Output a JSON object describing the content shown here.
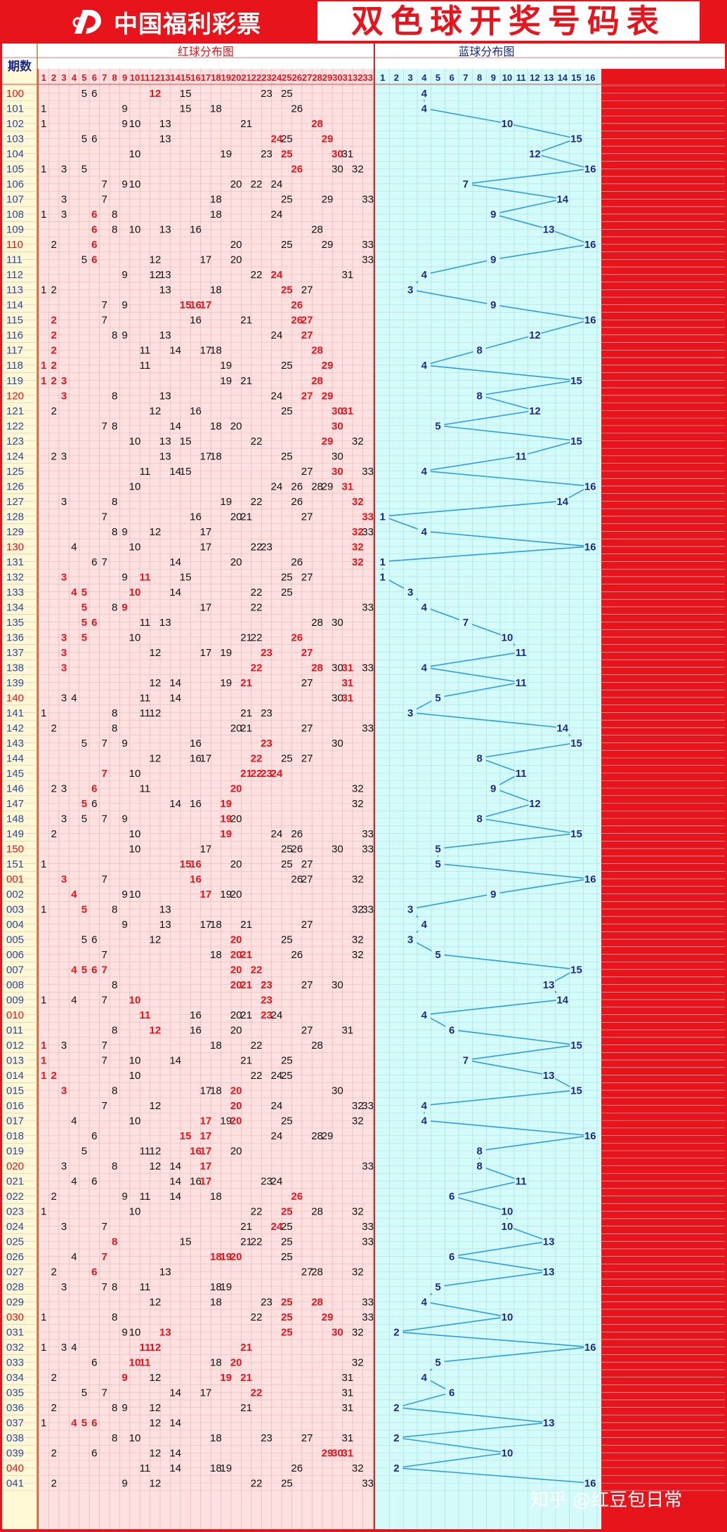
{
  "header": {
    "logo_text": "中国福利彩票",
    "title": "双色球开奖号码表"
  },
  "table": {
    "period_header": "期数",
    "red_header": "红球分布图",
    "blue_header": "蓝球分布图",
    "red_numbers": [
      "1",
      "2",
      "3",
      "4",
      "5",
      "6",
      "7",
      "8",
      "9",
      "10",
      "11",
      "12",
      "13",
      "14",
      "15",
      "16",
      "17",
      "18",
      "19",
      "20",
      "21",
      "22",
      "23",
      "24",
      "25",
      "26",
      "27",
      "28",
      "29",
      "30",
      "31",
      "32",
      "33"
    ],
    "blue_numbers": [
      "1",
      "2",
      "3",
      "4",
      "5",
      "6",
      "7",
      "8",
      "9",
      "10",
      "11",
      "12",
      "13",
      "14",
      "15",
      "16"
    ]
  },
  "colors": {
    "frame": "#e8141b",
    "red_area": "#fde0e0",
    "blue_area": "#d4fafa",
    "grid_red": "#f1b8b8",
    "grid_blue": "#a9e4e4",
    "text_black": "#111111",
    "text_red": "#e8141b",
    "text_navy": "#1a2a8c",
    "blue_line": "#2e9ee0",
    "period_black": "#2a4a9a",
    "period_red": "#e8141b"
  },
  "draws": [
    {
      "p": "100",
      "red": [
        5,
        6,
        12,
        15,
        23,
        25
      ],
      "hot": [
        12
      ],
      "blue": 4,
      "pr": true
    },
    {
      "p": "101",
      "red": [
        1,
        9,
        15,
        18,
        26
      ],
      "hot": [],
      "blue": 4,
      "pr": false
    },
    {
      "p": "102",
      "red": [
        1,
        9,
        10,
        13,
        21,
        28
      ],
      "hot": [
        28
      ],
      "blue": 10,
      "pr": false
    },
    {
      "p": "103",
      "red": [
        5,
        6,
        13,
        24,
        25,
        29
      ],
      "hot": [
        24,
        29
      ],
      "blue": 15,
      "pr": false
    },
    {
      "p": "104",
      "red": [
        10,
        19,
        23,
        25,
        30,
        31
      ],
      "hot": [
        25,
        30
      ],
      "blue": 12,
      "pr": false
    },
    {
      "p": "105",
      "red": [
        1,
        3,
        5,
        26,
        30,
        32
      ],
      "hot": [
        26
      ],
      "blue": 16,
      "pr": false
    },
    {
      "p": "106",
      "red": [
        7,
        9,
        10,
        20,
        22,
        24
      ],
      "hot": [],
      "blue": 7,
      "pr": false
    },
    {
      "p": "107",
      "red": [
        3,
        7,
        18,
        25,
        29,
        33
      ],
      "hot": [],
      "blue": 14,
      "pr": false
    },
    {
      "p": "108",
      "red": [
        1,
        3,
        6,
        8,
        18,
        24
      ],
      "hot": [
        6
      ],
      "blue": 9,
      "pr": false
    },
    {
      "p": "109",
      "red": [
        6,
        8,
        10,
        13,
        16,
        28
      ],
      "hot": [
        6
      ],
      "blue": 13,
      "pr": false
    },
    {
      "p": "110",
      "red": [
        2,
        6,
        20,
        25,
        29,
        33
      ],
      "hot": [
        6
      ],
      "blue": 16,
      "pr": true
    },
    {
      "p": "111",
      "red": [
        5,
        6,
        12,
        17,
        20,
        33
      ],
      "hot": [
        6
      ],
      "blue": 9,
      "pr": false
    },
    {
      "p": "112",
      "red": [
        9,
        12,
        13,
        22,
        24,
        31
      ],
      "hot": [
        24
      ],
      "blue": 4,
      "pr": false
    },
    {
      "p": "113",
      "red": [
        1,
        2,
        13,
        18,
        25,
        27
      ],
      "hot": [
        25
      ],
      "blue": 3,
      "pr": false
    },
    {
      "p": "114",
      "red": [
        7,
        9,
        15,
        16,
        17,
        26
      ],
      "hot": [
        15,
        16,
        17,
        26
      ],
      "blue": 9,
      "pr": false
    },
    {
      "p": "115",
      "red": [
        2,
        7,
        16,
        21,
        26,
        27
      ],
      "hot": [
        2,
        26,
        27
      ],
      "blue": 16,
      "pr": false
    },
    {
      "p": "116",
      "red": [
        2,
        8,
        9,
        13,
        24,
        27
      ],
      "hot": [
        2,
        27
      ],
      "blue": 12,
      "pr": false
    },
    {
      "p": "117",
      "red": [
        2,
        11,
        14,
        17,
        18,
        28
      ],
      "hot": [
        2,
        28
      ],
      "blue": 8,
      "pr": false
    },
    {
      "p": "118",
      "red": [
        1,
        2,
        11,
        19,
        25,
        29
      ],
      "hot": [
        1,
        2,
        29
      ],
      "blue": 4,
      "pr": false
    },
    {
      "p": "119",
      "red": [
        1,
        2,
        3,
        19,
        21,
        28
      ],
      "hot": [
        1,
        2,
        3,
        28
      ],
      "blue": 15,
      "pr": false
    },
    {
      "p": "120",
      "red": [
        3,
        8,
        13,
        24,
        27,
        29
      ],
      "hot": [
        3,
        27,
        29
      ],
      "blue": 8,
      "pr": true
    },
    {
      "p": "121",
      "red": [
        2,
        12,
        16,
        25,
        30,
        31
      ],
      "hot": [
        30,
        31
      ],
      "blue": 12,
      "pr": false
    },
    {
      "p": "122",
      "red": [
        7,
        8,
        14,
        18,
        20,
        30
      ],
      "hot": [
        30
      ],
      "blue": 5,
      "pr": false
    },
    {
      "p": "123",
      "red": [
        10,
        13,
        15,
        22,
        29,
        32
      ],
      "hot": [
        29
      ],
      "blue": 15,
      "pr": false
    },
    {
      "p": "124",
      "red": [
        2,
        3,
        13,
        17,
        18,
        25,
        30
      ],
      "hot": [],
      "blue": 11,
      "pr": false
    },
    {
      "p": "125",
      "red": [
        11,
        14,
        15,
        27,
        30,
        33
      ],
      "hot": [
        30
      ],
      "blue": 4,
      "pr": false
    },
    {
      "p": "126",
      "red": [
        10,
        24,
        26,
        28,
        29,
        31
      ],
      "hot": [
        31
      ],
      "blue": 16,
      "pr": false
    },
    {
      "p": "127",
      "red": [
        3,
        8,
        19,
        22,
        26,
        32
      ],
      "hot": [
        32
      ],
      "blue": 14,
      "pr": false
    },
    {
      "p": "128",
      "red": [
        7,
        16,
        20,
        21,
        27,
        33
      ],
      "hot": [
        33
      ],
      "blue": 1,
      "pr": false
    },
    {
      "p": "129",
      "red": [
        8,
        9,
        12,
        17,
        32,
        33
      ],
      "hot": [
        32
      ],
      "blue": 4,
      "pr": false
    },
    {
      "p": "130",
      "red": [
        4,
        10,
        17,
        22,
        23,
        32
      ],
      "hot": [
        32
      ],
      "blue": 16,
      "pr": true
    },
    {
      "p": "131",
      "red": [
        6,
        7,
        14,
        20,
        26,
        32
      ],
      "hot": [
        32
      ],
      "blue": 1,
      "pr": false
    },
    {
      "p": "132",
      "red": [
        3,
        9,
        11,
        15,
        25,
        27
      ],
      "hot": [
        3,
        11
      ],
      "blue": 1,
      "pr": false
    },
    {
      "p": "133",
      "red": [
        4,
        5,
        10,
        14,
        22,
        25
      ],
      "hot": [
        4,
        5,
        10
      ],
      "blue": 3,
      "pr": false
    },
    {
      "p": "134",
      "red": [
        5,
        8,
        9,
        17,
        22,
        33
      ],
      "hot": [
        5,
        9
      ],
      "blue": 4,
      "pr": false
    },
    {
      "p": "135",
      "red": [
        5,
        6,
        11,
        13,
        28,
        30
      ],
      "hot": [
        5,
        6
      ],
      "blue": 7,
      "pr": false
    },
    {
      "p": "136",
      "red": [
        3,
        5,
        10,
        21,
        22,
        26
      ],
      "hot": [
        3,
        5,
        26
      ],
      "blue": 10,
      "pr": false
    },
    {
      "p": "137",
      "red": [
        3,
        12,
        17,
        19,
        23,
        27
      ],
      "hot": [
        3,
        23,
        27
      ],
      "blue": 11,
      "pr": false
    },
    {
      "p": "138",
      "red": [
        3,
        22,
        28,
        30,
        31,
        33
      ],
      "hot": [
        3,
        22,
        28,
        31
      ],
      "blue": 4,
      "pr": false
    },
    {
      "p": "139",
      "red": [
        12,
        14,
        19,
        21,
        27,
        31
      ],
      "hot": [
        21,
        31
      ],
      "blue": 11,
      "pr": false
    },
    {
      "p": "140",
      "red": [
        3,
        4,
        11,
        14,
        30,
        31
      ],
      "hot": [
        31
      ],
      "blue": 5,
      "pr": true
    },
    {
      "p": "141",
      "red": [
        1,
        8,
        11,
        12,
        21,
        23
      ],
      "hot": [],
      "blue": 3,
      "pr": false
    },
    {
      "p": "142",
      "red": [
        2,
        8,
        20,
        21,
        27,
        33
      ],
      "hot": [],
      "blue": 14,
      "pr": false
    },
    {
      "p": "143",
      "red": [
        5,
        7,
        9,
        16,
        23,
        30
      ],
      "hot": [
        23
      ],
      "blue": 15,
      "pr": false
    },
    {
      "p": "144",
      "red": [
        12,
        16,
        17,
        22,
        25,
        27
      ],
      "hot": [
        22
      ],
      "blue": 8,
      "pr": false
    },
    {
      "p": "145",
      "red": [
        7,
        10,
        21,
        22,
        23,
        24
      ],
      "hot": [
        7,
        21,
        22,
        23,
        24
      ],
      "blue": 11,
      "pr": false
    },
    {
      "p": "146",
      "red": [
        2,
        3,
        6,
        11,
        20,
        32
      ],
      "hot": [
        6,
        20
      ],
      "blue": 9,
      "pr": false
    },
    {
      "p": "147",
      "red": [
        5,
        6,
        14,
        16,
        19,
        32
      ],
      "hot": [
        5,
        19
      ],
      "blue": 12,
      "pr": false
    },
    {
      "p": "148",
      "red": [
        3,
        5,
        7,
        9,
        19,
        20
      ],
      "hot": [
        19
      ],
      "blue": 8,
      "pr": false
    },
    {
      "p": "149",
      "red": [
        2,
        10,
        19,
        24,
        26,
        33
      ],
      "hot": [
        19
      ],
      "blue": 15,
      "pr": false
    },
    {
      "p": "150",
      "red": [
        10,
        17,
        25,
        26,
        30,
        33
      ],
      "hot": [],
      "blue": 5,
      "pr": true
    },
    {
      "p": "151",
      "red": [
        1,
        15,
        16,
        20,
        25,
        27
      ],
      "hot": [
        15,
        16
      ],
      "blue": 5,
      "pr": false
    },
    {
      "p": "001",
      "red": [
        3,
        7,
        16,
        26,
        27,
        32
      ],
      "hot": [
        3,
        16
      ],
      "blue": 16,
      "pr": true
    },
    {
      "p": "002",
      "red": [
        4,
        9,
        10,
        17,
        19,
        20
      ],
      "hot": [
        4,
        17
      ],
      "blue": 9,
      "pr": false
    },
    {
      "p": "003",
      "red": [
        1,
        5,
        8,
        13,
        32,
        33
      ],
      "hot": [
        5
      ],
      "blue": 3,
      "pr": false
    },
    {
      "p": "004",
      "red": [
        9,
        13,
        17,
        18,
        21,
        27
      ],
      "hot": [],
      "blue": 4,
      "pr": false
    },
    {
      "p": "005",
      "red": [
        5,
        6,
        12,
        20,
        25,
        32
      ],
      "hot": [
        20
      ],
      "blue": 3,
      "pr": false
    },
    {
      "p": "006",
      "red": [
        7,
        18,
        20,
        21,
        26,
        32
      ],
      "hot": [
        20,
        21
      ],
      "blue": 5,
      "pr": false
    },
    {
      "p": "007",
      "red": [
        4,
        5,
        6,
        7,
        20,
        22
      ],
      "hot": [
        4,
        5,
        6,
        7,
        20,
        22
      ],
      "blue": 15,
      "pr": false
    },
    {
      "p": "008",
      "red": [
        8,
        20,
        21,
        23,
        27,
        30
      ],
      "hot": [
        20,
        21,
        23
      ],
      "blue": 13,
      "pr": false
    },
    {
      "p": "009",
      "red": [
        1,
        4,
        7,
        10,
        23
      ],
      "hot": [
        10,
        23
      ],
      "blue": 14,
      "pr": false
    },
    {
      "p": "010",
      "red": [
        11,
        16,
        20,
        21,
        23,
        24
      ],
      "hot": [
        11,
        23
      ],
      "blue": 4,
      "pr": true
    },
    {
      "p": "011",
      "red": [
        8,
        12,
        16,
        20,
        27,
        31
      ],
      "hot": [
        12
      ],
      "blue": 6,
      "pr": false
    },
    {
      "p": "012",
      "red": [
        1,
        3,
        7,
        18,
        22,
        28
      ],
      "hot": [
        1
      ],
      "blue": 15,
      "pr": false
    },
    {
      "p": "013",
      "red": [
        1,
        7,
        10,
        14,
        21,
        25
      ],
      "hot": [
        1
      ],
      "blue": 7,
      "pr": false
    },
    {
      "p": "014",
      "red": [
        1,
        2,
        10,
        22,
        24,
        25
      ],
      "hot": [
        1,
        2
      ],
      "blue": 13,
      "pr": false
    },
    {
      "p": "015",
      "red": [
        3,
        8,
        17,
        18,
        20,
        30
      ],
      "hot": [
        3,
        20
      ],
      "blue": 15,
      "pr": false
    },
    {
      "p": "016",
      "red": [
        7,
        12,
        20,
        24,
        32,
        33
      ],
      "hot": [
        20
      ],
      "blue": 4,
      "pr": false
    },
    {
      "p": "017",
      "red": [
        4,
        10,
        17,
        19,
        20,
        25,
        32
      ],
      "hot": [
        17,
        20
      ],
      "blue": 4,
      "pr": false
    },
    {
      "p": "018",
      "red": [
        6,
        15,
        17,
        24,
        28,
        29
      ],
      "hot": [
        15,
        17
      ],
      "blue": 16,
      "pr": false
    },
    {
      "p": "019",
      "red": [
        5,
        11,
        12,
        16,
        17,
        20
      ],
      "hot": [
        16,
        17
      ],
      "blue": 8,
      "pr": false
    },
    {
      "p": "020",
      "red": [
        3,
        8,
        12,
        14,
        17,
        33
      ],
      "hot": [
        17
      ],
      "blue": 8,
      "pr": true
    },
    {
      "p": "021",
      "red": [
        4,
        6,
        14,
        16,
        17,
        23,
        24
      ],
      "hot": [
        17
      ],
      "blue": 11,
      "pr": false
    },
    {
      "p": "022",
      "red": [
        2,
        9,
        11,
        14,
        18,
        26
      ],
      "hot": [
        26
      ],
      "blue": 6,
      "pr": false
    },
    {
      "p": "023",
      "red": [
        1,
        10,
        22,
        25,
        28,
        32
      ],
      "hot": [
        25
      ],
      "blue": 10,
      "pr": false
    },
    {
      "p": "024",
      "red": [
        3,
        7,
        21,
        24,
        25,
        33
      ],
      "hot": [
        24
      ],
      "blue": 10,
      "pr": false
    },
    {
      "p": "025",
      "red": [
        8,
        15,
        21,
        22,
        25,
        33
      ],
      "hot": [
        8
      ],
      "blue": 13,
      "pr": false
    },
    {
      "p": "026",
      "red": [
        4,
        7,
        18,
        19,
        20,
        25
      ],
      "hot": [
        7,
        18,
        19,
        20
      ],
      "blue": 6,
      "pr": false
    },
    {
      "p": "027",
      "red": [
        2,
        6,
        13,
        27,
        28,
        32
      ],
      "hot": [
        6
      ],
      "blue": 13,
      "pr": false
    },
    {
      "p": "028",
      "red": [
        3,
        7,
        8,
        11,
        18,
        19
      ],
      "hot": [],
      "blue": 5,
      "pr": false
    },
    {
      "p": "029",
      "red": [
        12,
        18,
        23,
        25,
        28,
        33
      ],
      "hot": [
        25,
        28
      ],
      "blue": 4,
      "pr": false
    },
    {
      "p": "030",
      "red": [
        1,
        8,
        22,
        25,
        29,
        33
      ],
      "hot": [
        25,
        29
      ],
      "blue": 10,
      "pr": true
    },
    {
      "p": "031",
      "red": [
        9,
        10,
        13,
        25,
        30,
        32
      ],
      "hot": [
        13,
        25,
        30
      ],
      "blue": 2,
      "pr": false
    },
    {
      "p": "032",
      "red": [
        1,
        3,
        4,
        11,
        12,
        21
      ],
      "hot": [
        11,
        12,
        21
      ],
      "blue": 16,
      "pr": false
    },
    {
      "p": "033",
      "red": [
        6,
        10,
        11,
        18,
        20,
        32
      ],
      "hot": [
        10,
        11,
        20
      ],
      "blue": 5,
      "pr": false
    },
    {
      "p": "034",
      "red": [
        2,
        9,
        12,
        19,
        21,
        31
      ],
      "hot": [
        9,
        19,
        21
      ],
      "blue": 4,
      "pr": false
    },
    {
      "p": "035",
      "red": [
        5,
        7,
        14,
        17,
        22,
        31
      ],
      "hot": [
        22
      ],
      "blue": 6,
      "pr": false
    },
    {
      "p": "036",
      "red": [
        2,
        8,
        9,
        12,
        21,
        31
      ],
      "hot": [],
      "blue": 2,
      "pr": false
    },
    {
      "p": "037",
      "red": [
        1,
        4,
        5,
        6,
        12,
        14
      ],
      "hot": [
        4,
        5,
        6
      ],
      "blue": 13,
      "pr": false
    },
    {
      "p": "038",
      "red": [
        8,
        10,
        18,
        23,
        27,
        31
      ],
      "hot": [],
      "blue": 2,
      "pr": false
    },
    {
      "p": "039",
      "red": [
        2,
        6,
        12,
        14,
        29,
        30,
        31
      ],
      "hot": [
        29,
        30,
        31
      ],
      "blue": 10,
      "pr": false
    },
    {
      "p": "040",
      "red": [
        11,
        14,
        18,
        19,
        26,
        32
      ],
      "hot": [],
      "blue": 2,
      "pr": true
    },
    {
      "p": "041",
      "red": [
        2,
        9,
        12,
        22,
        25,
        33
      ],
      "hot": [],
      "blue": 16,
      "pr": false
    }
  ],
  "watermark": "知乎 @红豆包日常"
}
